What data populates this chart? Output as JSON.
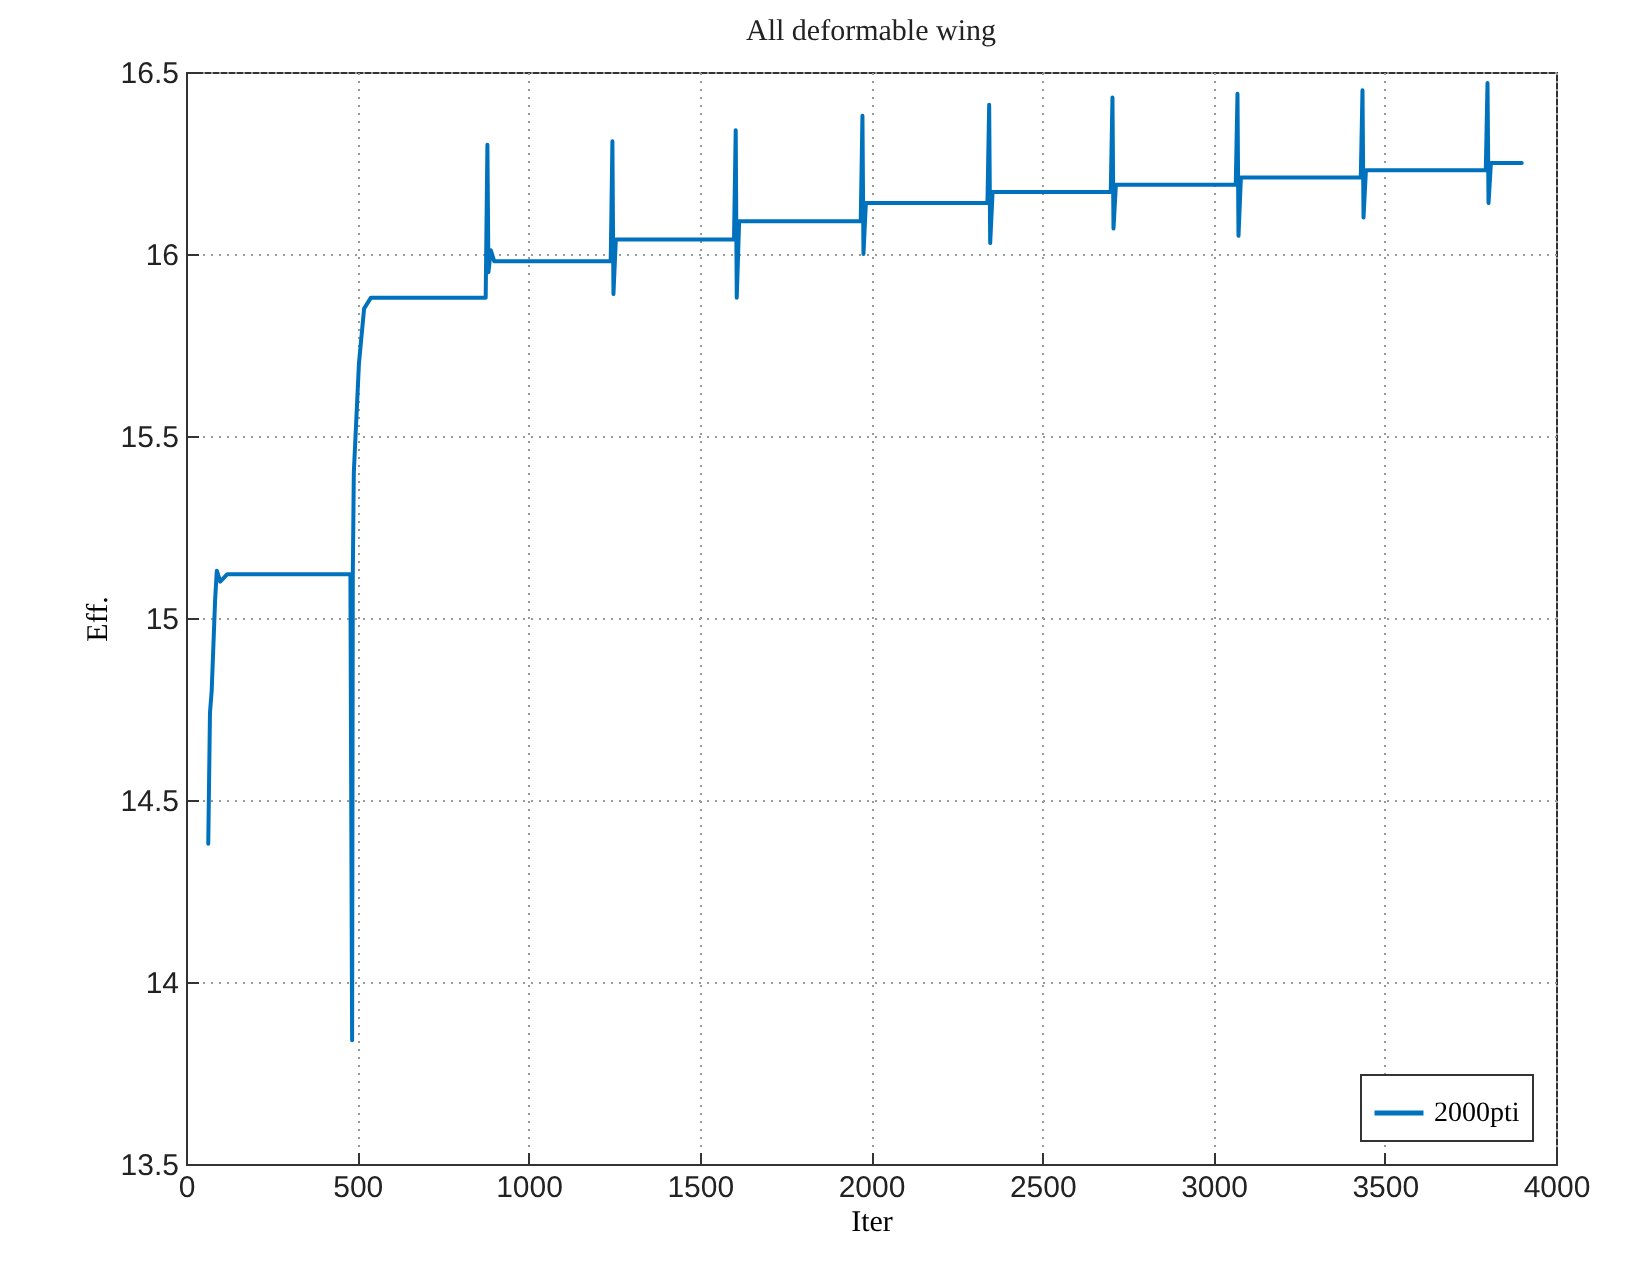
{
  "chart_data": {
    "type": "line",
    "title": "All deformable wing",
    "xlabel": "Iter",
    "ylabel": "Eff.",
    "xlim": [
      0,
      4000
    ],
    "xticks": [
      0,
      500,
      1000,
      1500,
      2000,
      2500,
      3000,
      3500,
      4000
    ],
    "ylim": [
      13.5,
      16.5
    ],
    "yticks": [
      13.5,
      14,
      14.5,
      15,
      15.5,
      16,
      16.5
    ],
    "grid": true,
    "legend": "bottom right",
    "line_style": "solid",
    "series": [
      {
        "name": "2000pti",
        "color": "#0072bd",
        "x": [
          65,
          70,
          75,
          85,
          90,
          100,
          120,
          480,
          485,
          487,
          490,
          505,
          520,
          540,
          875,
          880,
          883,
          890,
          900,
          1240,
          1245,
          1248,
          1255,
          1600,
          1605,
          1608,
          1615,
          1970,
          1975,
          1978,
          1985,
          2340,
          2345,
          2348,
          2355,
          2700,
          2705,
          2708,
          2715,
          3065,
          3070,
          3073,
          3080,
          3430,
          3435,
          3438,
          3445,
          3795,
          3800,
          3803,
          3810,
          3900
        ],
        "values": [
          14.38,
          14.74,
          14.8,
          15.05,
          15.13,
          15.1,
          15.12,
          15.12,
          13.84,
          15.12,
          15.4,
          15.7,
          15.85,
          15.88,
          15.88,
          16.3,
          15.95,
          16.01,
          15.98,
          15.98,
          16.31,
          15.89,
          16.04,
          16.04,
          16.34,
          15.88,
          16.09,
          16.09,
          16.38,
          16.0,
          16.14,
          16.14,
          16.41,
          16.03,
          16.17,
          16.17,
          16.43,
          16.07,
          16.19,
          16.19,
          16.44,
          16.05,
          16.21,
          16.21,
          16.45,
          16.1,
          16.23,
          16.23,
          16.47,
          16.14,
          16.25,
          16.25
        ]
      }
    ]
  }
}
